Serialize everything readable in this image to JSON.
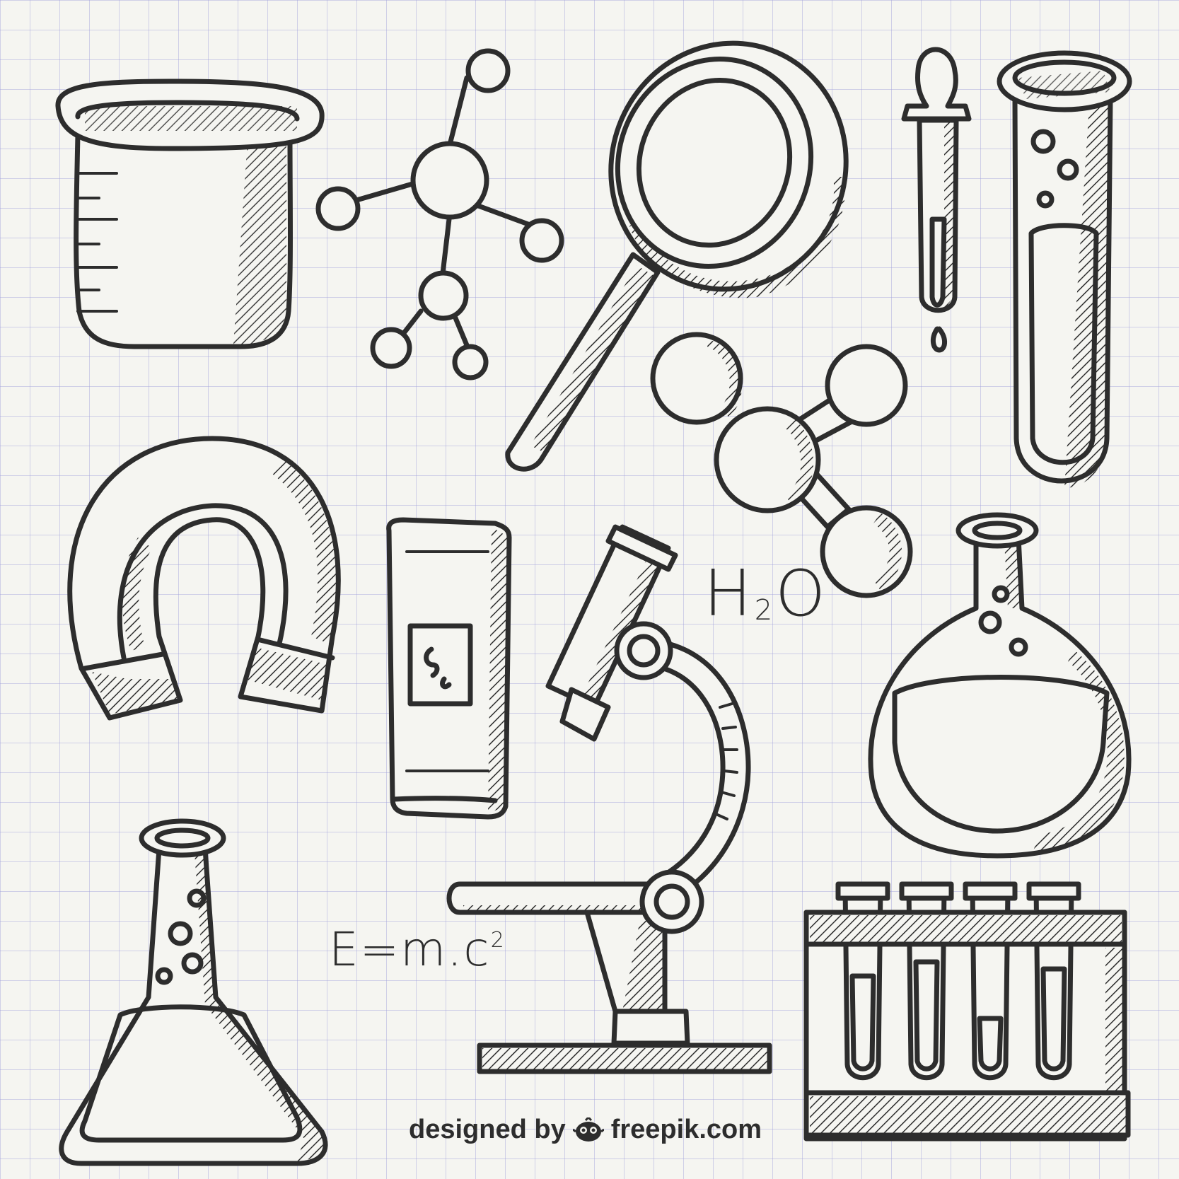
{
  "artwork": {
    "h2o": {
      "main": "H",
      "sub": "2",
      "tail": "O"
    },
    "formula": {
      "main": "E=m.c",
      "sup": "2"
    }
  },
  "credit": {
    "designed_by": "designed by",
    "brand": "freepik.com"
  },
  "colors": {
    "ink": "#2d2d2d",
    "paper": "#f5f5f1",
    "grid": "#a0a0dc"
  }
}
